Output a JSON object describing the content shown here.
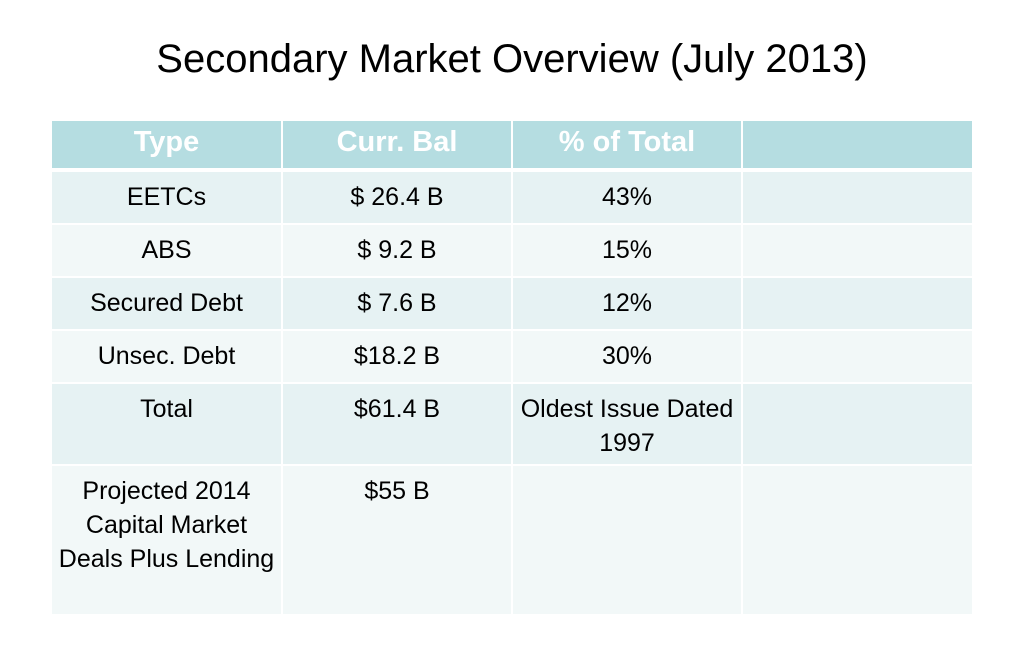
{
  "slide": {
    "title": "Secondary Market Overview (July 2013)"
  },
  "table": {
    "headers": [
      "Type",
      "Curr. Bal",
      "% of Total",
      ""
    ],
    "rows": [
      [
        "EETCs",
        "$ 26.4 B",
        "43%",
        ""
      ],
      [
        "ABS",
        "$ 9.2 B",
        "15%",
        ""
      ],
      [
        "Secured Debt",
        "$ 7.6 B",
        "12%",
        ""
      ],
      [
        "Unsec. Debt",
        "$18.2 B",
        "30%",
        ""
      ],
      [
        "Total",
        "$61.4 B",
        "Oldest Issue Dated 1997",
        ""
      ],
      [
        "Projected 2014 Capital Market Deals Plus Lending",
        "$55 B",
        "",
        ""
      ]
    ]
  },
  "colors": {
    "header_bg": "#b5dde1",
    "row_odd_bg": "#e6f2f3",
    "row_even_bg": "#f2f8f8",
    "header_text": "#ffffff"
  }
}
